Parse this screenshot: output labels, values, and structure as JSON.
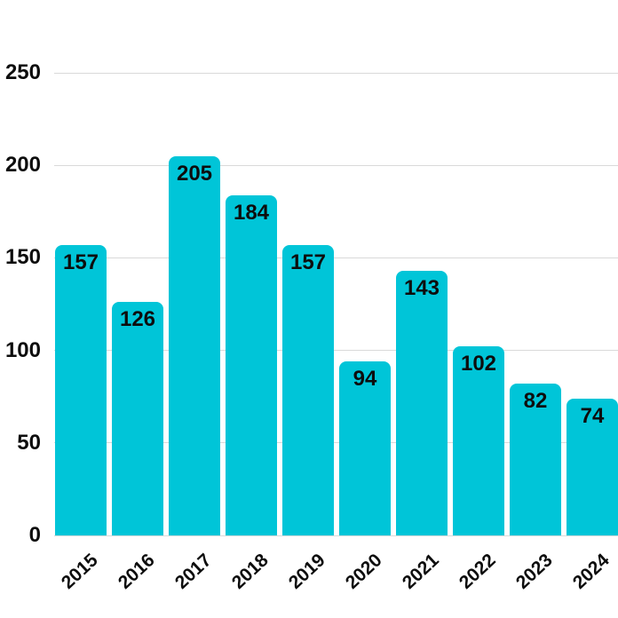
{
  "chart_data": {
    "type": "bar",
    "title": "",
    "xlabel": "",
    "ylabel": "",
    "categories": [
      "2015",
      "2016",
      "2017",
      "2018",
      "2019",
      "2020",
      "2021",
      "2022",
      "2023",
      "2024"
    ],
    "values": [
      157,
      126,
      205,
      184,
      157,
      94,
      143,
      102,
      82,
      74
    ],
    "ylim": [
      0,
      250
    ],
    "y_ticks": [
      0,
      50,
      100,
      150,
      200,
      250
    ],
    "grid": true,
    "legend": false,
    "bar_color": "#00c5d8",
    "grid_color": "#d9d9d9",
    "text_color": "#0d0d0d",
    "background_color": "#ffffff"
  }
}
